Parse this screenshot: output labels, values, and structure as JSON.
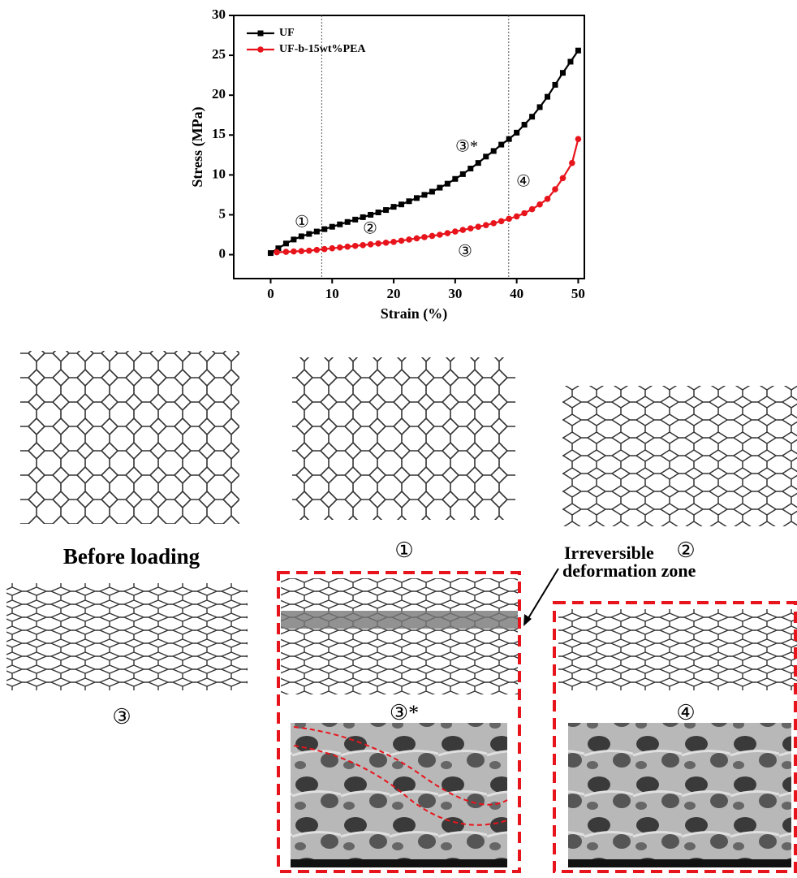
{
  "chart_data": {
    "type": "line",
    "xlabel": "Strain (%)",
    "ylabel": "Stress (MPa)",
    "xlim": [
      -6,
      51
    ],
    "ylim": [
      -3,
      30
    ],
    "xticks": [
      0,
      10,
      20,
      30,
      40,
      50
    ],
    "yticks": [
      0,
      5,
      10,
      15,
      20,
      25,
      30
    ],
    "legend": "upper left",
    "reference_lines": [
      8.3,
      38.7
    ],
    "annotations": [
      "①",
      "②",
      "③*",
      "④",
      "③"
    ],
    "series": [
      {
        "name": "UF",
        "color": "#000000",
        "marker": "square",
        "x": [
          0,
          1.25,
          2.5,
          3.75,
          5,
          6.25,
          7.5,
          8.75,
          10,
          11.25,
          12.5,
          13.75,
          15,
          16.25,
          17.5,
          18.75,
          20,
          21.25,
          22.5,
          23.75,
          25,
          26.25,
          27.5,
          28.75,
          30,
          31.25,
          32.5,
          33.75,
          35,
          36.25,
          37.5,
          38.75,
          40,
          41.25,
          42.5,
          43.75,
          45,
          46.25,
          47.5,
          48.75,
          50
        ],
        "values": [
          0.2,
          0.8,
          1.4,
          1.9,
          2.3,
          2.6,
          2.9,
          3.2,
          3.5,
          3.8,
          4.1,
          4.4,
          4.7,
          5.0,
          5.3,
          5.6,
          6.0,
          6.3,
          6.7,
          7.1,
          7.5,
          7.9,
          8.4,
          8.9,
          9.5,
          10.1,
          10.8,
          11.5,
          12.3,
          13.0,
          13.8,
          14.5,
          15.3,
          16.3,
          17.3,
          18.5,
          19.8,
          21.3,
          22.8,
          24.2,
          25.6
        ]
      },
      {
        "name": "UF-b-15wt%PEA",
        "color": "#e8141c",
        "marker": "circle",
        "x": [
          1,
          2.5,
          3.75,
          5,
          6.25,
          7.5,
          8.75,
          10,
          11.25,
          12.5,
          13.75,
          15,
          16.25,
          17.5,
          18.75,
          20,
          21.25,
          22.5,
          23.75,
          25,
          26.25,
          27.5,
          28.75,
          30,
          31.25,
          32.5,
          33.75,
          35,
          36.25,
          37.5,
          38.75,
          40,
          41.25,
          42.5,
          43.75,
          45,
          46.25,
          47.5,
          49,
          50
        ],
        "values": [
          0.3,
          0.35,
          0.4,
          0.45,
          0.5,
          0.6,
          0.7,
          0.8,
          0.9,
          1.0,
          1.1,
          1.2,
          1.3,
          1.4,
          1.5,
          1.6,
          1.75,
          1.9,
          2.05,
          2.2,
          2.35,
          2.5,
          2.7,
          2.9,
          3.1,
          3.3,
          3.5,
          3.7,
          3.95,
          4.2,
          4.5,
          4.8,
          5.2,
          5.7,
          6.3,
          7.0,
          8.2,
          9.6,
          11.5,
          14.5
        ]
      }
    ]
  },
  "figure": {
    "before_loading": "Before loading",
    "panel_1": "①",
    "panel_2": "②",
    "panel_3": "③",
    "panel_3star": "③*",
    "panel_4": "④",
    "callout": [
      "Irreversible",
      "deformation zone"
    ]
  }
}
